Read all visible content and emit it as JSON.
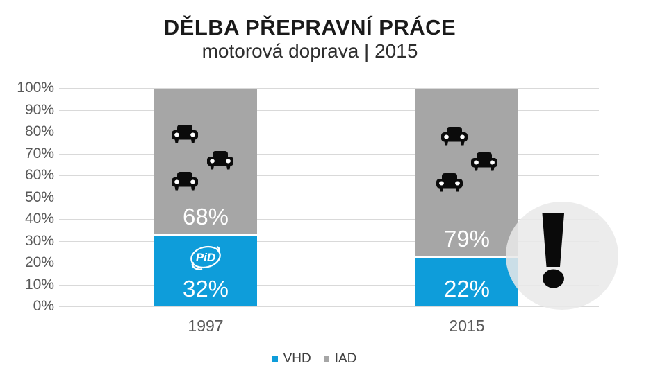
{
  "title": "DĚLBA PŘEPRAVNÍ PRÁCE",
  "subtitle": "motorová doprava | 2015",
  "chart_data": {
    "type": "bar",
    "stacked": true,
    "title": "DĚLBA PŘEPRAVNÍ PRÁCE",
    "subtitle": "motorová doprava | 2015",
    "categories": [
      "1997",
      "2015"
    ],
    "series": [
      {
        "name": "VHD",
        "color": "#0e9dda",
        "values": [
          32,
          22
        ],
        "stack_position": "bottom"
      },
      {
        "name": "IAD",
        "color": "#a6a6a6",
        "values": [
          68,
          79
        ],
        "stack_position": "top"
      }
    ],
    "bar_value_labels": [
      [
        "32%",
        "68%"
      ],
      [
        "22%",
        "79%"
      ]
    ],
    "ylim": [
      0,
      100
    ],
    "yticks": [
      "0%",
      "10%",
      "20%",
      "30%",
      "40%",
      "50%",
      "60%",
      "70%",
      "80%",
      "90%",
      "100%"
    ],
    "grid": true,
    "gridline_color": "#d9d9d9",
    "axis_text_color": "#595959",
    "legend_position": "bottom",
    "value_label_color": "#ffffff"
  },
  "icons": {
    "iad_segment_icon": "car-icon",
    "iad_icons_per_bar": 3,
    "vhd_1997_icon": "pid-logo",
    "annotation_icon": "exclamation-mark",
    "annotation_background": "light-gray-circle"
  },
  "legend": {
    "items": [
      {
        "label": "VHD",
        "color": "#0e9dda"
      },
      {
        "label": "IAD",
        "color": "#a6a6a6"
      }
    ]
  }
}
